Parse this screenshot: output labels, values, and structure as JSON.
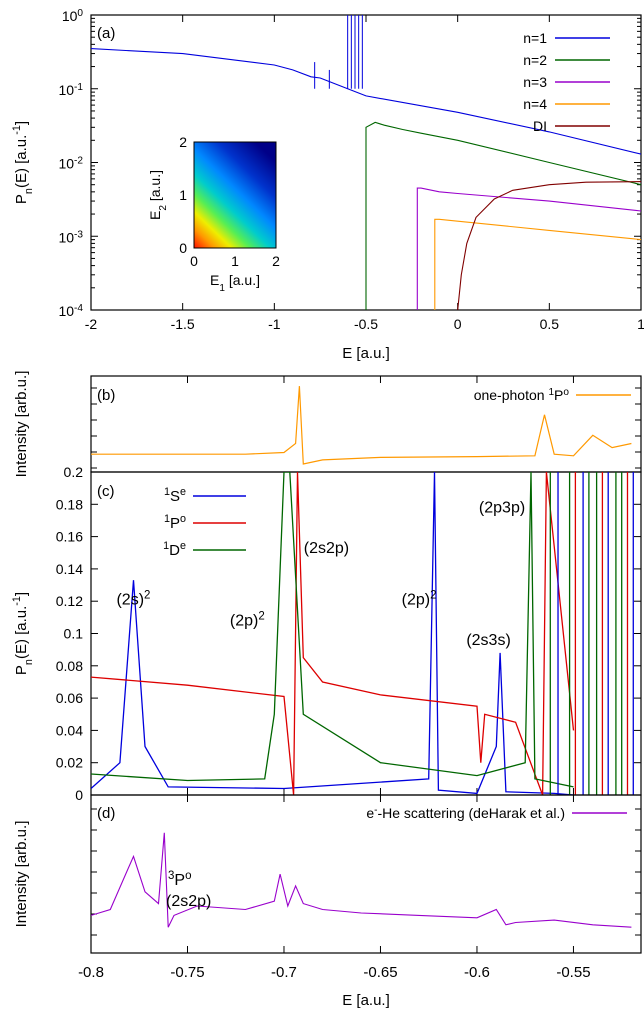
{
  "chart_data": [
    {
      "panel": "(a)",
      "type": "line",
      "xlabel": "E [a.u.]",
      "ylabel": "P_n(E) [a.u.^-1]",
      "xlim": [
        -2,
        1
      ],
      "ylim": [
        0.0001,
        1
      ],
      "yscale": "log",
      "x_ticks": [
        "-2",
        "-1.5",
        "-1",
        "-0.5",
        "0",
        "0.5",
        "1"
      ],
      "y_ticks": [
        {
          "base": "10",
          "exp": "-4"
        },
        {
          "base": "10",
          "exp": "-3"
        },
        {
          "base": "10",
          "exp": "-2"
        },
        {
          "base": "10",
          "exp": "-1"
        },
        {
          "base": "10",
          "exp": "0"
        }
      ],
      "legend_position": "top-right",
      "series": [
        {
          "name": "n=1",
          "color": "#0000dd",
          "x": [
            -2,
            -1.5,
            -1,
            -0.9,
            -0.8,
            -0.75,
            -0.6,
            -0.5,
            0,
            0.5,
            1
          ],
          "y": [
            0.35,
            0.3,
            0.21,
            0.18,
            0.145,
            0.14,
            0.1,
            0.08,
            0.048,
            0.026,
            0.013
          ]
        },
        {
          "name": "n=2",
          "color": "#006600",
          "x": [
            -0.5,
            -0.45,
            -0.4,
            -0.3,
            -0.2,
            0,
            0.5,
            1
          ],
          "y": [
            0.03,
            0.035,
            0.032,
            0.028,
            0.025,
            0.02,
            0.01,
            0.005
          ]
        },
        {
          "name": "n=3",
          "color": "#9900cc",
          "x": [
            -0.22,
            -0.2,
            -0.1,
            0,
            0.5,
            1
          ],
          "y": [
            0.0045,
            0.0045,
            0.004,
            0.0038,
            0.003,
            0.0022
          ]
        },
        {
          "name": "n=4",
          "color": "#ff9900",
          "x": [
            -0.125,
            -0.1,
            0,
            0.5,
            1
          ],
          "y": [
            0.0017,
            0.0017,
            0.0016,
            0.0012,
            0.0009
          ]
        },
        {
          "name": "DI",
          "color": "#800000",
          "x": [
            0,
            0.02,
            0.05,
            0.1,
            0.2,
            0.3,
            0.5,
            0.7,
            1
          ],
          "y": [
            0.0001,
            0.0003,
            0.0008,
            0.0018,
            0.0032,
            0.0042,
            0.005,
            0.0054,
            0.0055
          ]
        }
      ],
      "inset": {
        "type": "heatmap",
        "xlabel": "E_1 [a.u.]",
        "ylabel": "E_2 [a.u.]",
        "xlim": [
          0,
          2
        ],
        "ylim": [
          0,
          2
        ],
        "x_ticks": [
          "0",
          "1",
          "2"
        ],
        "y_ticks": [
          "0",
          "1",
          "2"
        ]
      }
    },
    {
      "panel": "(b)",
      "type": "line",
      "ylabel": "Intensity [arb.u.]",
      "xlim": [
        -0.8,
        -0.515
      ],
      "legend_position": "top-right",
      "series": [
        {
          "name": "one-photon ¹Pᵒ",
          "name_parts": {
            "pre": "one-photon ",
            "sup": "1",
            "base": "P",
            "sup2": "o"
          },
          "color": "#ff9900",
          "x": [
            -0.8,
            -0.75,
            -0.72,
            -0.7,
            -0.694,
            -0.692,
            -0.69,
            -0.68,
            -0.65,
            -0.6,
            -0.57,
            -0.565,
            -0.56,
            -0.55,
            -0.54,
            -0.53,
            -0.52
          ],
          "y": [
            0.12,
            0.12,
            0.12,
            0.14,
            0.25,
            0.95,
            0.0,
            0.05,
            0.08,
            0.09,
            0.1,
            0.6,
            0.12,
            0.1,
            0.35,
            0.2,
            0.25
          ]
        }
      ]
    },
    {
      "panel": "(c)",
      "type": "line",
      "xlabel": "E [a.u.]",
      "ylabel": "P_n(E) [a.u.^-1]",
      "xlim": [
        -0.8,
        -0.515
      ],
      "ylim": [
        0,
        0.2
      ],
      "x_ticks": [
        "-0.8",
        "-0.75",
        "-0.7",
        "-0.65",
        "-0.6",
        "-0.55"
      ],
      "y_ticks": [
        "0",
        "0.02",
        "0.04",
        "0.06",
        "0.08",
        "0.1",
        "0.12",
        "0.14",
        "0.16",
        "0.18",
        "0.2"
      ],
      "legend_position": "top-left",
      "series": [
        {
          "name": "¹Sᵉ",
          "name_parts": {
            "sup": "1",
            "base": "S",
            "sup2": "e"
          },
          "color": "#0000dd",
          "x": [
            -0.8,
            -0.785,
            -0.778,
            -0.772,
            -0.76,
            -0.7,
            -0.625,
            -0.622,
            -0.62,
            -0.6,
            -0.59,
            -0.588,
            -0.585,
            -0.56,
            -0.55
          ],
          "y": [
            0.004,
            0.02,
            0.133,
            0.03,
            0.005,
            0.004,
            0.01,
            0.2,
            0.003,
            0.001,
            0.03,
            0.088,
            0.002,
            0.001,
            0.0
          ]
        },
        {
          "name": "¹Pᵒ",
          "name_parts": {
            "sup": "1",
            "base": "P",
            "sup2": "o"
          },
          "color": "#dd0000",
          "x": [
            -0.8,
            -0.75,
            -0.7,
            -0.695,
            -0.693,
            -0.69,
            -0.68,
            -0.65,
            -0.6,
            -0.598,
            -0.596,
            -0.58,
            -0.566,
            -0.564,
            -0.55
          ],
          "y": [
            0.073,
            0.068,
            0.061,
            0.0,
            0.2,
            0.085,
            0.07,
            0.062,
            0.055,
            0.02,
            0.05,
            0.045,
            0.0,
            0.2,
            0.04
          ]
        },
        {
          "name": "¹Dᵉ",
          "name_parts": {
            "sup": "1",
            "base": "D",
            "sup2": "e"
          },
          "color": "#006600",
          "x": [
            -0.8,
            -0.75,
            -0.71,
            -0.705,
            -0.7,
            -0.697,
            -0.69,
            -0.65,
            -0.6,
            -0.575,
            -0.572,
            -0.57,
            -0.55
          ],
          "y": [
            0.013,
            0.009,
            0.01,
            0.05,
            0.2,
            0.2,
            0.05,
            0.02,
            0.012,
            0.02,
            0.2,
            0.01,
            0.005
          ]
        }
      ],
      "annotations": [
        {
          "base": "(2s)",
          "sup": "2",
          "x": -0.778,
          "y": 0.118,
          "color": "#0000dd"
        },
        {
          "base": "(2p)",
          "sup": "2",
          "x": -0.719,
          "y": 0.105,
          "color": "#006600"
        },
        {
          "base": "(2s2p)",
          "sup": "",
          "x": -0.678,
          "y": 0.15,
          "color": "#dd0000"
        },
        {
          "base": "(2p)",
          "sup": "2",
          "x": -0.63,
          "y": 0.118,
          "color": "#0000dd"
        },
        {
          "base": "(2s3s)",
          "sup": "",
          "x": -0.594,
          "y": 0.093,
          "color": "#0000dd"
        },
        {
          "base": "(2p3p)",
          "sup": "",
          "x": -0.587,
          "y": 0.175,
          "color": "#006600"
        }
      ]
    },
    {
      "panel": "(d)",
      "type": "line",
      "xlabel": "E [a.u.]",
      "ylabel": "Intensity [arb.u.]",
      "xlim": [
        -0.8,
        -0.515
      ],
      "x_ticks": [
        "-0.8",
        "-0.75",
        "-0.7",
        "-0.65",
        "-0.6",
        "-0.55"
      ],
      "legend_position": "top-right",
      "series": [
        {
          "name": "e⁻-He scattering (deHarak et al.)",
          "name_parts": {
            "base": "e",
            "sup": "-",
            "post": "-He scattering (deHarak et al.)"
          },
          "color": "#9900cc",
          "x": [
            -0.8,
            -0.79,
            -0.782,
            -0.778,
            -0.772,
            -0.765,
            -0.762,
            -0.76,
            -0.757,
            -0.745,
            -0.72,
            -0.705,
            -0.702,
            -0.698,
            -0.694,
            -0.69,
            -0.68,
            -0.66,
            -0.63,
            -0.6,
            -0.59,
            -0.585,
            -0.58,
            -0.56,
            -0.54,
            -0.52
          ],
          "y": [
            0.2,
            0.25,
            0.55,
            0.7,
            0.4,
            0.3,
            0.9,
            0.1,
            0.2,
            0.28,
            0.25,
            0.32,
            0.55,
            0.28,
            0.45,
            0.3,
            0.25,
            0.22,
            0.2,
            0.18,
            0.25,
            0.12,
            0.14,
            0.16,
            0.12,
            0.1
          ]
        }
      ],
      "annotation": {
        "sup": "3",
        "base": "P",
        "sup2": "o",
        "line2": "(2s2p)",
        "color": "#9900cc"
      }
    }
  ]
}
